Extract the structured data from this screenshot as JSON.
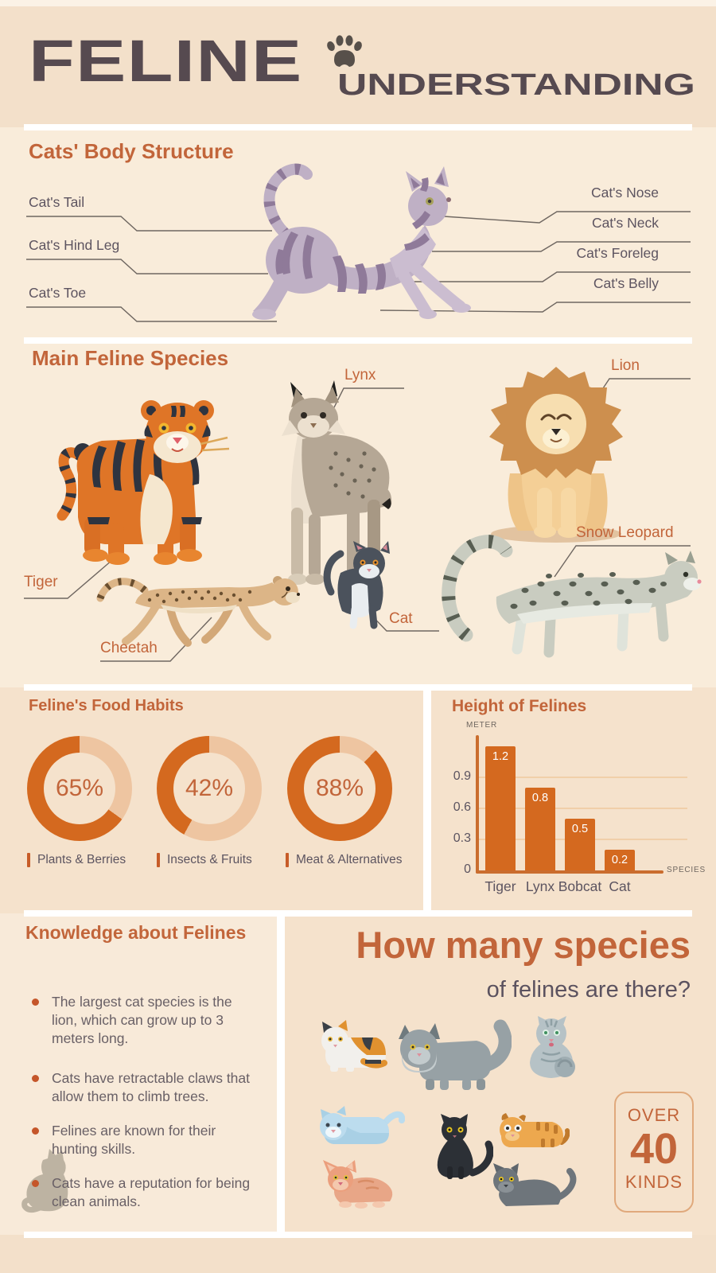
{
  "palette": {
    "accent_orange": "#c2653a",
    "donut_orange": "#d4691f",
    "donut_track": "#eec5a1",
    "bar_orange": "#d4691f",
    "axis_orange": "#ca6d2e",
    "text_dark": "#5c5460",
    "heading_dark": "#564a50"
  },
  "header": {
    "title": "FELINE",
    "subtitle": "UNDERSTANDING"
  },
  "body_structure": {
    "title": "Cats' Body Structure",
    "left_labels": [
      "Cat's Tail",
      "Cat's Hind Leg",
      "Cat's Toe"
    ],
    "right_labels": [
      "Cat's Nose",
      "Cat's Neck",
      "Cat's Foreleg",
      "Cat's Belly"
    ]
  },
  "species": {
    "title": "Main Feline Species",
    "labels": [
      "Tiger",
      "Lynx",
      "Lion",
      "Cheetah",
      "Cat",
      "Snow Leopard"
    ]
  },
  "knowledge": {
    "title": "Knowledge about Felines",
    "facts": [
      "The largest cat species is the lion, which can grow up to 3 meters long.",
      "Cats have retractable claws that allow them to climb trees.",
      "Felines are known for their hunting skills.",
      "Cats have a reputation for being clean animals."
    ]
  },
  "how_many": {
    "title_line1": "How many species",
    "title_line2": "of felines are there?",
    "badge_over": "OVER",
    "badge_number": "40",
    "badge_kinds": "KINDS"
  },
  "chart_data": [
    {
      "type": "pie",
      "title": "Feline's Food Habits",
      "style": "three donut gauges, filled clockwise ending at 12 o'clock",
      "items": [
        {
          "label": "Plants & Berries",
          "value": 65
        },
        {
          "label": "Insects & Fruits",
          "value": 42
        },
        {
          "label": "Meat & Alternatives",
          "value": 88
        }
      ]
    },
    {
      "type": "bar",
      "title": "Height of Felines",
      "ylabel": "METER",
      "xlabel": "SPECIES",
      "categories": [
        "Tiger",
        "Lynx",
        "Bobcat",
        "Cat"
      ],
      "values": [
        1.2,
        0.8,
        0.5,
        0.2
      ],
      "yticks": [
        0,
        0.3,
        0.6,
        0.9
      ],
      "ylim": [
        0,
        1.25
      ],
      "grid": true,
      "legend": false
    }
  ]
}
